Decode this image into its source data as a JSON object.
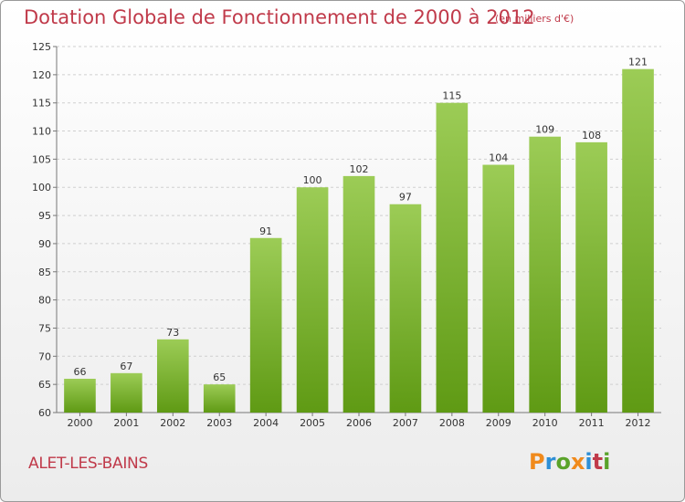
{
  "header": {
    "title": "Dotation Globale de Fonctionnement de 2000 à 2012",
    "unit": "(en milliers d'€)"
  },
  "footer": {
    "town": "ALET-LES-BAINS",
    "brand": "Proxiti"
  },
  "colors": {
    "title": "#c03a4a",
    "bar_top": "#9ccc56",
    "bar_bottom": "#5f9a14",
    "brand_letters": [
      "#f08a1c",
      "#2e8fd6",
      "#5aa32a",
      "#f08a1c",
      "#2e8fd6",
      "#c03a4a",
      "#5aa32a"
    ]
  },
  "chart_data": {
    "type": "bar",
    "title": "Dotation Globale de Fonctionnement de 2000 à 2012",
    "subtitle": "(en milliers d'€)",
    "categories": [
      "2000",
      "2001",
      "2002",
      "2003",
      "2004",
      "2005",
      "2006",
      "2007",
      "2008",
      "2009",
      "2010",
      "2011",
      "2012"
    ],
    "values": [
      66,
      67,
      73,
      65,
      91,
      100,
      102,
      97,
      115,
      104,
      109,
      108,
      121
    ],
    "ylim": [
      60,
      125
    ],
    "yticks": [
      60,
      65,
      70,
      75,
      80,
      85,
      90,
      95,
      100,
      105,
      110,
      115,
      120,
      125
    ],
    "grid": true,
    "legend": "none"
  }
}
